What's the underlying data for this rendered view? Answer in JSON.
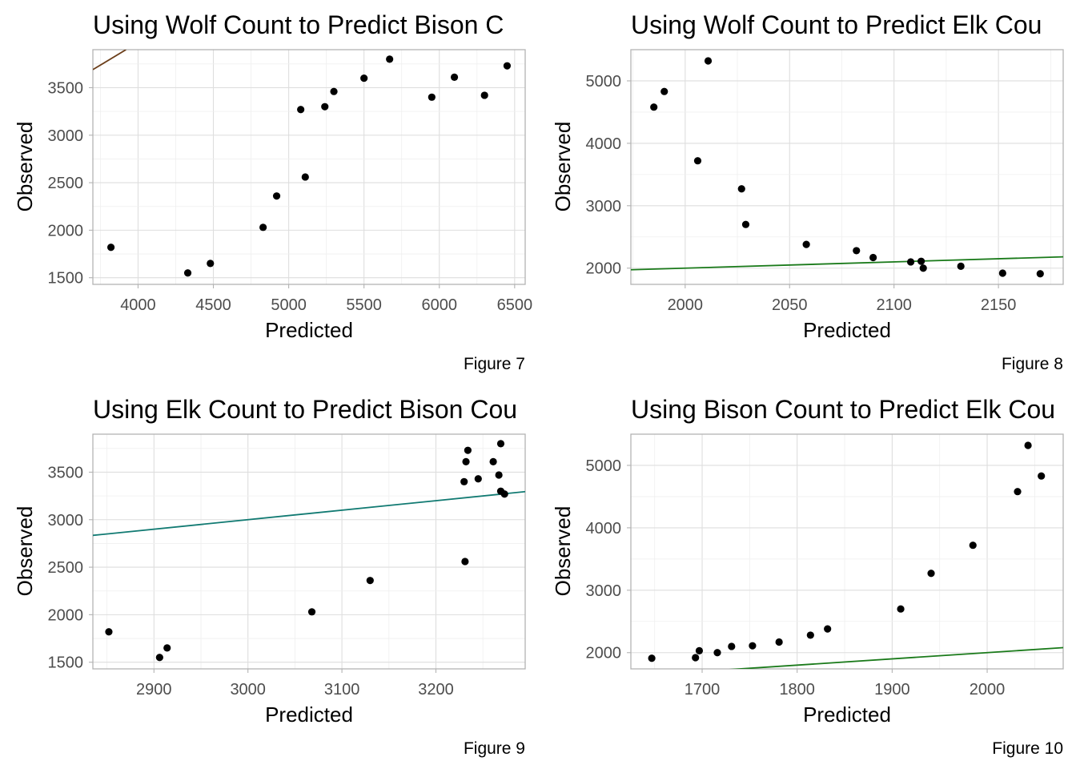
{
  "chart_data": [
    {
      "type": "scatter",
      "title": "Using Wolf Count to Predict Bison C",
      "xlabel": "Predicted",
      "ylabel": "Observed",
      "caption": "Figure 7",
      "xlim": [
        3700,
        6570
      ],
      "ylim": [
        1430,
        3900
      ],
      "xticks": [
        4000,
        4500,
        5000,
        5500,
        6000,
        6500
      ],
      "yticks": [
        1500,
        2000,
        2500,
        3000,
        3500
      ],
      "grid": true,
      "points": [
        {
          "x": 3820,
          "y": 1820
        },
        {
          "x": 4330,
          "y": 1550
        },
        {
          "x": 4480,
          "y": 1650
        },
        {
          "x": 4830,
          "y": 2030
        },
        {
          "x": 4920,
          "y": 2360
        },
        {
          "x": 5080,
          "y": 3270
        },
        {
          "x": 5110,
          "y": 2560
        },
        {
          "x": 5240,
          "y": 3300
        },
        {
          "x": 5300,
          "y": 3460
        },
        {
          "x": 5500,
          "y": 3600
        },
        {
          "x": 5670,
          "y": 3800
        },
        {
          "x": 5950,
          "y": 3400
        },
        {
          "x": 6100,
          "y": 3610
        },
        {
          "x": 6300,
          "y": 3420
        },
        {
          "x": 6450,
          "y": 3730
        }
      ],
      "reference_line": {
        "x": [
          3700,
          3920
        ],
        "y": [
          3690,
          3900
        ],
        "color": "#6b3e1a"
      }
    },
    {
      "type": "scatter",
      "title": "Using Wolf Count to Predict Elk Cou",
      "xlabel": "Predicted",
      "ylabel": "Observed",
      "caption": "Figure 8",
      "xlim": [
        1974,
        2181
      ],
      "ylim": [
        1740,
        5500
      ],
      "xticks": [
        2000,
        2050,
        2100,
        2150
      ],
      "yticks": [
        2000,
        3000,
        4000,
        5000
      ],
      "grid": true,
      "points": [
        {
          "x": 1985,
          "y": 4580
        },
        {
          "x": 1990,
          "y": 4830
        },
        {
          "x": 2006,
          "y": 3720
        },
        {
          "x": 2011,
          "y": 5320
        },
        {
          "x": 2027,
          "y": 3270
        },
        {
          "x": 2029,
          "y": 2700
        },
        {
          "x": 2058,
          "y": 2380
        },
        {
          "x": 2082,
          "y": 2280
        },
        {
          "x": 2090,
          "y": 2170
        },
        {
          "x": 2108,
          "y": 2100
        },
        {
          "x": 2113,
          "y": 2110
        },
        {
          "x": 2114,
          "y": 2000
        },
        {
          "x": 2132,
          "y": 2030
        },
        {
          "x": 2152,
          "y": 1920
        },
        {
          "x": 2170,
          "y": 1910
        }
      ],
      "reference_line": {
        "x": [
          1974,
          2181
        ],
        "y": [
          1974,
          2181
        ],
        "color": "#1a7a1a"
      }
    },
    {
      "type": "scatter",
      "title": "Using Elk Count to Predict Bison Cou",
      "xlabel": "Predicted",
      "ylabel": "Observed",
      "caption": "Figure 9",
      "xlim": [
        2835,
        3295
      ],
      "ylim": [
        1430,
        3900
      ],
      "xticks": [
        2900,
        3000,
        3100,
        3200
      ],
      "yticks": [
        1500,
        2000,
        2500,
        3000,
        3500
      ],
      "grid": true,
      "points": [
        {
          "x": 2852,
          "y": 1820
        },
        {
          "x": 2906,
          "y": 1550
        },
        {
          "x": 2914,
          "y": 1650
        },
        {
          "x": 3068,
          "y": 2030
        },
        {
          "x": 3130,
          "y": 2360
        },
        {
          "x": 3230,
          "y": 3400
        },
        {
          "x": 3231,
          "y": 2560
        },
        {
          "x": 3232,
          "y": 3610
        },
        {
          "x": 3234,
          "y": 3730
        },
        {
          "x": 3245,
          "y": 3430
        },
        {
          "x": 3261,
          "y": 3610
        },
        {
          "x": 3267,
          "y": 3470
        },
        {
          "x": 3269,
          "y": 3800
        },
        {
          "x": 3269,
          "y": 3300
        },
        {
          "x": 3273,
          "y": 3270
        }
      ],
      "reference_line": {
        "x": [
          2835,
          3295
        ],
        "y": [
          2835,
          3295
        ],
        "color": "#117a72"
      }
    },
    {
      "type": "scatter",
      "title": "Using Bison Count to Predict Elk Cou",
      "xlabel": "Predicted",
      "ylabel": "Observed",
      "caption": "Figure 10",
      "xlim": [
        1625,
        2080
      ],
      "ylim": [
        1740,
        5500
      ],
      "xticks": [
        1700,
        1800,
        1900,
        2000
      ],
      "yticks": [
        2000,
        3000,
        4000,
        5000
      ],
      "grid": true,
      "points": [
        {
          "x": 1647,
          "y": 1910
        },
        {
          "x": 1693,
          "y": 1920
        },
        {
          "x": 1697,
          "y": 2030
        },
        {
          "x": 1716,
          "y": 2000
        },
        {
          "x": 1731,
          "y": 2100
        },
        {
          "x": 1753,
          "y": 2110
        },
        {
          "x": 1781,
          "y": 2170
        },
        {
          "x": 1814,
          "y": 2280
        },
        {
          "x": 1832,
          "y": 2380
        },
        {
          "x": 1909,
          "y": 2700
        },
        {
          "x": 1941,
          "y": 3270
        },
        {
          "x": 1985,
          "y": 3720
        },
        {
          "x": 2032,
          "y": 4580
        },
        {
          "x": 2043,
          "y": 5320
        },
        {
          "x": 2057,
          "y": 4830
        }
      ],
      "reference_line": {
        "x": [
          1625,
          2080
        ],
        "y": [
          1625,
          2080
        ],
        "color": "#1a7a1a"
      }
    }
  ]
}
